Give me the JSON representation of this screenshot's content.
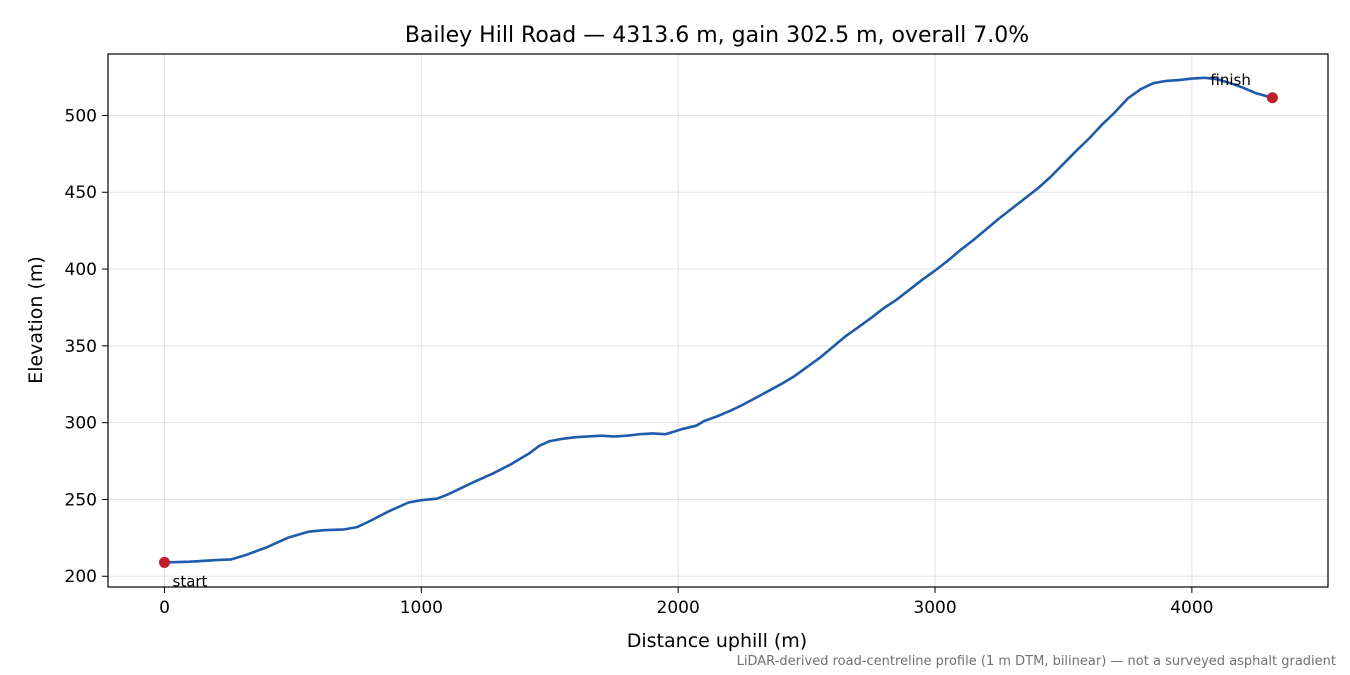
{
  "chart_data": {
    "type": "line",
    "title": "Bailey Hill Road — 4313.6 m, gain 302.5 m, overall 7.0%",
    "xlabel": "Distance uphill (m)",
    "ylabel": "Elevation (m)",
    "xlim": [
      -220,
      4530
    ],
    "ylim": [
      193,
      540
    ],
    "xticks": [
      0,
      1000,
      2000,
      3000,
      4000
    ],
    "yticks": [
      200,
      250,
      300,
      350,
      400,
      450,
      500
    ],
    "grid": true,
    "line_color": "#1f5ba8",
    "marker_color": "#c01f2f",
    "footnote": "LiDAR-derived road-centreline profile (1 m DTM, bilinear) — not a surveyed asphalt gradient",
    "series": [
      {
        "x": [
          0,
          100,
          200,
          260,
          320,
          400,
          480,
          560,
          620,
          700,
          750,
          800,
          870,
          950,
          1000,
          1060,
          1100,
          1150,
          1200,
          1280,
          1350,
          1420,
          1460,
          1500,
          1550,
          1600,
          1700,
          1750,
          1800,
          1850,
          1900,
          1950,
          1980,
          2020,
          2070,
          2100,
          2150,
          2200,
          2250,
          2300,
          2350,
          2400,
          2450,
          2500,
          2550,
          2600,
          2650,
          2700,
          2750,
          2800,
          2850,
          2900,
          2950,
          3000,
          3050,
          3100,
          3150,
          3200,
          3250,
          3300,
          3350,
          3400,
          3450,
          3500,
          3550,
          3600,
          3650,
          3700,
          3750,
          3800,
          3850,
          3900,
          3950,
          4000,
          4050,
          4100,
          4150,
          4200,
          4250,
          4313.6
        ],
        "y": [
          209,
          209.5,
          210.5,
          211,
          214,
          219,
          225,
          229,
          230,
          230.5,
          232,
          236,
          242,
          248,
          249.5,
          250.5,
          253,
          257,
          261,
          267,
          273,
          280,
          285,
          288,
          289.5,
          290.5,
          291.5,
          291,
          291.5,
          292.5,
          293,
          292.5,
          294,
          296,
          298,
          301,
          304,
          307.5,
          311.5,
          316,
          320.5,
          325,
          330,
          336,
          342,
          349,
          356,
          362,
          368,
          374.5,
          380,
          386.5,
          393,
          399,
          405.5,
          412.5,
          419,
          426,
          433,
          439.5,
          446,
          452.5,
          460,
          468.5,
          477,
          485,
          494,
          502,
          511,
          517,
          521,
          522.5,
          523,
          524,
          524.5,
          523.5,
          521,
          518,
          514.5,
          511.5
        ]
      }
    ],
    "annotations": [
      {
        "text": "start",
        "x": 0,
        "y": 209
      },
      {
        "text": "finish",
        "x": 4313.6,
        "y": 511.5
      }
    ]
  }
}
